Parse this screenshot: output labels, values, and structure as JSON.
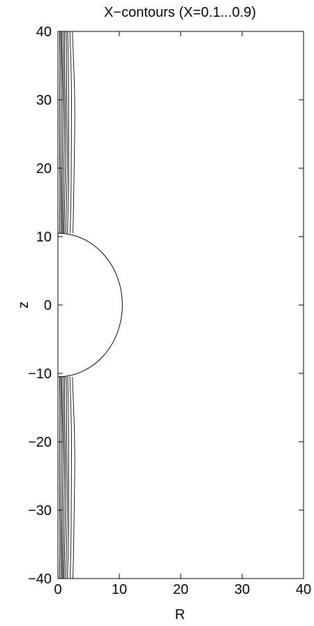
{
  "chart_data": {
    "type": "line",
    "title": "X−contours (X=0.1...0.9)",
    "xlabel": "R",
    "ylabel": "z",
    "xlim": [
      0,
      40
    ],
    "ylim": [
      -40,
      40
    ],
    "xticks": [
      0,
      10,
      20,
      30,
      40
    ],
    "yticks": [
      40,
      30,
      20,
      10,
      0,
      -10,
      -20,
      -30,
      -40
    ],
    "x_tick_labels": [
      "0",
      "10",
      "20",
      "30",
      "40"
    ],
    "y_tick_labels": [
      "40",
      "30",
      "20",
      "10",
      "0",
      "−10",
      "−20",
      "−30",
      "−40"
    ],
    "grid": false,
    "legend": "none",
    "line_color": "#000000",
    "sphere_boundary": {
      "shape": "semicircle",
      "center": [
        0,
        0
      ],
      "radius": 10.5
    },
    "contour_levels": [
      0.1,
      0.2,
      0.3,
      0.4,
      0.5,
      0.6,
      0.7,
      0.8,
      0.9
    ],
    "contour_base_R": [
      0.25,
      0.45,
      0.65,
      0.85,
      1.05,
      1.3,
      1.55,
      1.95,
      2.4
    ],
    "contour_bulge_R": [
      0.05,
      0.08,
      0.11,
      0.14,
      0.17,
      0.2,
      0.24,
      0.28,
      0.33
    ],
    "contour_z_ranges": [
      [
        10.5,
        40
      ],
      [
        -40,
        -10.5
      ]
    ]
  }
}
